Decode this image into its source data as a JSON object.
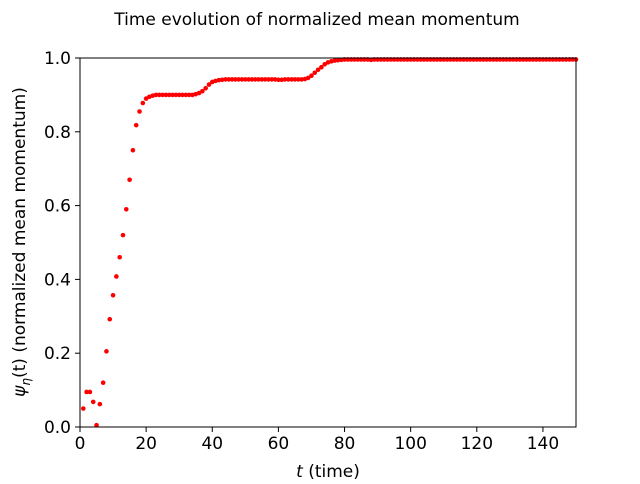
{
  "chart_data": {
    "type": "scatter",
    "title": "Time evolution of normalized mean momentum",
    "xlabel_var": "t",
    "xlabel_rest": " (time)",
    "ylabel_psi": "ψ",
    "ylabel_sub": "η",
    "ylabel_rest": "(t) (normalized mean momentum)",
    "xlim": [
      0,
      150
    ],
    "ylim": [
      0,
      1.0
    ],
    "xticks": [
      0,
      20,
      40,
      60,
      80,
      100,
      120,
      140
    ],
    "yticks": [
      0.0,
      0.2,
      0.4,
      0.6,
      0.8,
      1.0
    ],
    "xtick_labels": [
      "0",
      "20",
      "40",
      "60",
      "80",
      "100",
      "120",
      "140"
    ],
    "ytick_labels": [
      "0.0",
      "0.2",
      "0.4",
      "0.6",
      "0.8",
      "1.0"
    ],
    "grid": false,
    "marker_color": "#ff0000",
    "x": [
      1,
      2,
      3,
      4,
      5,
      6,
      7,
      8,
      9,
      10,
      11,
      12,
      13,
      14,
      15,
      16,
      17,
      18,
      19,
      20,
      21,
      22,
      23,
      24,
      25,
      26,
      27,
      28,
      29,
      30,
      31,
      32,
      33,
      34,
      35,
      36,
      37,
      38,
      39,
      40,
      41,
      42,
      43,
      44,
      45,
      46,
      47,
      48,
      49,
      50,
      51,
      52,
      53,
      54,
      55,
      56,
      57,
      58,
      59,
      60,
      61,
      62,
      63,
      64,
      65,
      66,
      67,
      68,
      69,
      70,
      71,
      72,
      73,
      74,
      75,
      76,
      77,
      78,
      79,
      80,
      81,
      82,
      83,
      84,
      85,
      86,
      87,
      88,
      89,
      90,
      91,
      92,
      93,
      94,
      95,
      96,
      97,
      98,
      99,
      100,
      101,
      102,
      103,
      104,
      105,
      106,
      107,
      108,
      109,
      110,
      111,
      112,
      113,
      114,
      115,
      116,
      117,
      118,
      119,
      120,
      121,
      122,
      123,
      124,
      125,
      126,
      127,
      128,
      129,
      130,
      131,
      132,
      133,
      134,
      135,
      136,
      137,
      138,
      139,
      140,
      141,
      142,
      143,
      144,
      145,
      146,
      147,
      148,
      149,
      150
    ],
    "y": [
      0.05,
      0.095,
      0.095,
      0.068,
      0.005,
      0.062,
      0.12,
      0.205,
      0.292,
      0.357,
      0.408,
      0.46,
      0.52,
      0.59,
      0.67,
      0.75,
      0.818,
      0.855,
      0.878,
      0.89,
      0.895,
      0.898,
      0.9,
      0.9,
      0.9,
      0.9,
      0.9,
      0.9,
      0.9,
      0.9,
      0.9,
      0.9,
      0.9,
      0.9,
      0.902,
      0.905,
      0.91,
      0.918,
      0.928,
      0.935,
      0.938,
      0.94,
      0.941,
      0.942,
      0.942,
      0.942,
      0.942,
      0.942,
      0.942,
      0.942,
      0.942,
      0.942,
      0.942,
      0.942,
      0.942,
      0.942,
      0.942,
      0.942,
      0.942,
      0.941,
      0.941,
      0.942,
      0.942,
      0.942,
      0.942,
      0.942,
      0.942,
      0.943,
      0.946,
      0.952,
      0.96,
      0.968,
      0.975,
      0.983,
      0.988,
      0.991,
      0.993,
      0.994,
      0.995,
      0.996,
      0.996,
      0.996,
      0.996,
      0.996,
      0.996,
      0.996,
      0.996,
      0.995,
      0.996,
      0.996,
      0.996,
      0.996,
      0.996,
      0.996,
      0.996,
      0.996,
      0.996,
      0.996,
      0.996,
      0.996,
      0.996,
      0.996,
      0.996,
      0.996,
      0.996,
      0.996,
      0.996,
      0.996,
      0.996,
      0.996,
      0.996,
      0.996,
      0.996,
      0.996,
      0.996,
      0.996,
      0.996,
      0.996,
      0.996,
      0.996,
      0.996,
      0.996,
      0.996,
      0.996,
      0.996,
      0.996,
      0.996,
      0.996,
      0.996,
      0.996,
      0.996,
      0.996,
      0.996,
      0.996,
      0.996,
      0.996,
      0.996,
      0.996,
      0.996,
      0.996,
      0.996,
      0.996,
      0.996,
      0.996,
      0.996,
      0.996,
      0.996,
      0.996,
      0.996,
      0.996
    ]
  }
}
